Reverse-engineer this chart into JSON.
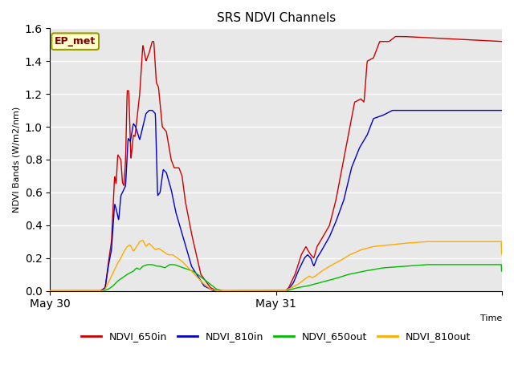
{
  "title": "SRS NDVI Channels",
  "ylabel": "NDVI Bands (W/m2/nm)",
  "xlabel": "Time",
  "xlim": [
    0,
    1440
  ],
  "ylim": [
    0.0,
    1.6
  ],
  "yticks": [
    0.0,
    0.2,
    0.4,
    0.6,
    0.8,
    1.0,
    1.2,
    1.4,
    1.6
  ],
  "xtick_positions": [
    0,
    720,
    1440
  ],
  "xtick_labels": [
    "May 30",
    "May 31",
    ""
  ],
  "background_color": "#e8e8e8",
  "grid_color": "#ffffff",
  "annotation_text": "EP_met",
  "annotation_bg": "#ffffcc",
  "annotation_border": "#999900",
  "colors": {
    "NDVI_650in": "#cc0000",
    "NDVI_810in": "#0000cc",
    "NDVI_650out": "#00bb00",
    "NDVI_810out": "#ffaa00"
  },
  "legend_labels": [
    "NDVI_650in",
    "NDVI_810in",
    "NDVI_650out",
    "NDVI_810out"
  ]
}
